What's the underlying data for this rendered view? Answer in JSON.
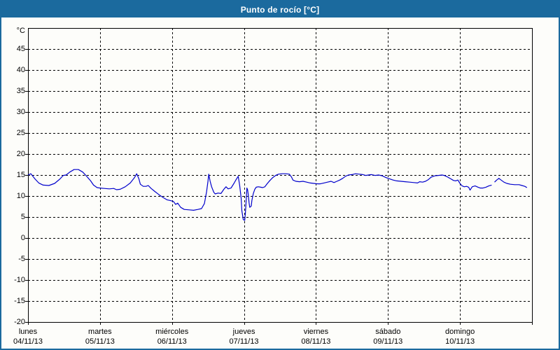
{
  "window": {
    "title": "Punto de rocío [°C]"
  },
  "colors": {
    "chrome": "#1b6a9e",
    "title_text": "#ffffff",
    "line": "#0000cc",
    "grid": "#000000",
    "plot_border": "#000000",
    "background": "#fdfdfa"
  },
  "chart_data": {
    "type": "line",
    "title": "Punto de rocío [°C]",
    "ylabel": "°C",
    "xlabel": "",
    "ylim": [
      -20,
      50
    ],
    "ytick_step": 5,
    "yticks": [
      45,
      40,
      35,
      30,
      25,
      20,
      15,
      10,
      5,
      0,
      -5,
      -10,
      -15,
      -20
    ],
    "xlim_days": [
      0,
      7
    ],
    "x_days": [
      {
        "name": "lunes",
        "date": "04/11/13"
      },
      {
        "name": "martes",
        "date": "05/11/13"
      },
      {
        "name": "miércoles",
        "date": "06/11/13"
      },
      {
        "name": "jueves",
        "date": "07/11/13"
      },
      {
        "name": "viernes",
        "date": "08/11/13"
      },
      {
        "name": "sábado",
        "date": "09/11/13"
      },
      {
        "name": "domingo",
        "date": "10/11/13"
      }
    ],
    "grid": "dashed",
    "legend": "none",
    "series": [
      {
        "name": "Punto de rocío",
        "color": "#0000cc",
        "points": [
          [
            0.0,
            15.0
          ],
          [
            0.04,
            15.3
          ],
          [
            0.1,
            14.0
          ],
          [
            0.15,
            13.1
          ],
          [
            0.21,
            12.6
          ],
          [
            0.29,
            12.5
          ],
          [
            0.37,
            13.0
          ],
          [
            0.44,
            14.0
          ],
          [
            0.49,
            14.9
          ],
          [
            0.53,
            15.0
          ],
          [
            0.58,
            15.7
          ],
          [
            0.64,
            16.3
          ],
          [
            0.7,
            16.3
          ],
          [
            0.76,
            15.7
          ],
          [
            0.82,
            14.6
          ],
          [
            0.87,
            13.6
          ],
          [
            0.91,
            12.6
          ],
          [
            0.96,
            12.0
          ],
          [
            1.0,
            11.9
          ],
          [
            1.06,
            11.8
          ],
          [
            1.13,
            11.7
          ],
          [
            1.19,
            11.8
          ],
          [
            1.23,
            11.5
          ],
          [
            1.28,
            11.6
          ],
          [
            1.35,
            12.2
          ],
          [
            1.42,
            13.1
          ],
          [
            1.48,
            14.4
          ],
          [
            1.51,
            15.3
          ],
          [
            1.54,
            14.1
          ],
          [
            1.56,
            12.8
          ],
          [
            1.6,
            12.3
          ],
          [
            1.64,
            12.3
          ],
          [
            1.67,
            12.5
          ],
          [
            1.71,
            11.8
          ],
          [
            1.76,
            11.1
          ],
          [
            1.82,
            10.3
          ],
          [
            1.88,
            9.6
          ],
          [
            1.93,
            9.1
          ],
          [
            1.98,
            8.9
          ],
          [
            2.02,
            8.7
          ],
          [
            2.05,
            8.0
          ],
          [
            2.08,
            8.3
          ],
          [
            2.12,
            7.3
          ],
          [
            2.17,
            6.8
          ],
          [
            2.24,
            6.7
          ],
          [
            2.3,
            6.6
          ],
          [
            2.36,
            6.8
          ],
          [
            2.41,
            7.0
          ],
          [
            2.45,
            8.2
          ],
          [
            2.48,
            11.0
          ],
          [
            2.5,
            13.5
          ],
          [
            2.51,
            15.2
          ],
          [
            2.53,
            13.5
          ],
          [
            2.55,
            12.2
          ],
          [
            2.58,
            10.9
          ],
          [
            2.6,
            10.5
          ],
          [
            2.64,
            10.7
          ],
          [
            2.68,
            10.6
          ],
          [
            2.72,
            11.6
          ],
          [
            2.75,
            12.2
          ],
          [
            2.78,
            11.7
          ],
          [
            2.82,
            11.9
          ],
          [
            2.86,
            13.0
          ],
          [
            2.89,
            13.9
          ],
          [
            2.92,
            14.7
          ],
          [
            2.94,
            12.5
          ],
          [
            2.96,
            9.5
          ],
          [
            2.97,
            6.5
          ],
          [
            2.99,
            4.4
          ],
          [
            3.01,
            4.2
          ],
          [
            3.02,
            6.0
          ],
          [
            3.03,
            9.0
          ],
          [
            3.04,
            11.9
          ],
          [
            3.05,
            11.5
          ],
          [
            3.06,
            10.3
          ],
          [
            3.07,
            8.4
          ],
          [
            3.08,
            7.3
          ],
          [
            3.1,
            7.6
          ],
          [
            3.11,
            9.0
          ],
          [
            3.13,
            10.6
          ],
          [
            3.15,
            11.6
          ],
          [
            3.17,
            12.1
          ],
          [
            3.2,
            12.2
          ],
          [
            3.23,
            12.1
          ],
          [
            3.26,
            12.0
          ],
          [
            3.29,
            12.2
          ],
          [
            3.32,
            12.9
          ],
          [
            3.36,
            13.7
          ],
          [
            3.4,
            14.4
          ],
          [
            3.44,
            14.9
          ],
          [
            3.48,
            15.2
          ],
          [
            3.53,
            15.3
          ],
          [
            3.58,
            15.3
          ],
          [
            3.63,
            15.2
          ],
          [
            3.66,
            14.5
          ],
          [
            3.68,
            13.8
          ],
          [
            3.72,
            13.5
          ],
          [
            3.77,
            13.4
          ],
          [
            3.82,
            13.5
          ],
          [
            3.87,
            13.3
          ],
          [
            3.92,
            13.1
          ],
          [
            3.97,
            13.0
          ],
          [
            4.02,
            12.9
          ],
          [
            4.06,
            12.9
          ],
          [
            4.11,
            13.1
          ],
          [
            4.16,
            13.3
          ],
          [
            4.21,
            13.5
          ],
          [
            4.25,
            13.2
          ],
          [
            4.29,
            13.5
          ],
          [
            4.33,
            13.8
          ],
          [
            4.37,
            14.2
          ],
          [
            4.41,
            14.7
          ],
          [
            4.45,
            15.0
          ],
          [
            4.5,
            15.1
          ],
          [
            4.55,
            15.3
          ],
          [
            4.6,
            15.2
          ],
          [
            4.65,
            15.1
          ],
          [
            4.69,
            14.9
          ],
          [
            4.73,
            15.0
          ],
          [
            4.77,
            15.1
          ],
          [
            4.82,
            14.9
          ],
          [
            4.87,
            15.0
          ],
          [
            4.92,
            14.8
          ],
          [
            4.97,
            14.4
          ],
          [
            5.02,
            14.1
          ],
          [
            5.07,
            13.8
          ],
          [
            5.12,
            13.6
          ],
          [
            5.18,
            13.5
          ],
          [
            5.24,
            13.4
          ],
          [
            5.3,
            13.3
          ],
          [
            5.36,
            13.2
          ],
          [
            5.41,
            13.1
          ],
          [
            5.44,
            13.4
          ],
          [
            5.48,
            13.3
          ],
          [
            5.52,
            13.5
          ],
          [
            5.56,
            13.9
          ],
          [
            5.6,
            14.5
          ],
          [
            5.65,
            14.8
          ],
          [
            5.7,
            14.9
          ],
          [
            5.75,
            15.0
          ],
          [
            5.78,
            14.9
          ],
          [
            5.82,
            14.6
          ],
          [
            5.87,
            14.1
          ],
          [
            5.91,
            13.7
          ],
          [
            5.94,
            13.6
          ],
          [
            5.97,
            13.8
          ],
          [
            6.0,
            13.0
          ],
          [
            6.03,
            12.4
          ],
          [
            6.06,
            12.2
          ],
          [
            6.09,
            12.3
          ],
          [
            6.12,
            12.1
          ],
          [
            6.14,
            11.4
          ],
          [
            6.17,
            12.2
          ],
          [
            6.21,
            12.4
          ],
          [
            6.25,
            12.1
          ],
          [
            6.28,
            11.9
          ],
          [
            6.32,
            11.9
          ],
          [
            6.36,
            12.1
          ],
          [
            6.4,
            12.4
          ],
          [
            6.44,
            12.6
          ],
          null,
          [
            6.48,
            13.3
          ],
          [
            6.51,
            13.8
          ],
          [
            6.54,
            14.2
          ],
          [
            6.57,
            13.8
          ],
          [
            6.61,
            13.3
          ],
          [
            6.65,
            13.0
          ],
          [
            6.7,
            12.8
          ],
          [
            6.76,
            12.7
          ],
          [
            6.82,
            12.7
          ],
          [
            6.86,
            12.5
          ],
          [
            6.9,
            12.3
          ],
          [
            6.93,
            12.0
          ]
        ]
      }
    ]
  }
}
